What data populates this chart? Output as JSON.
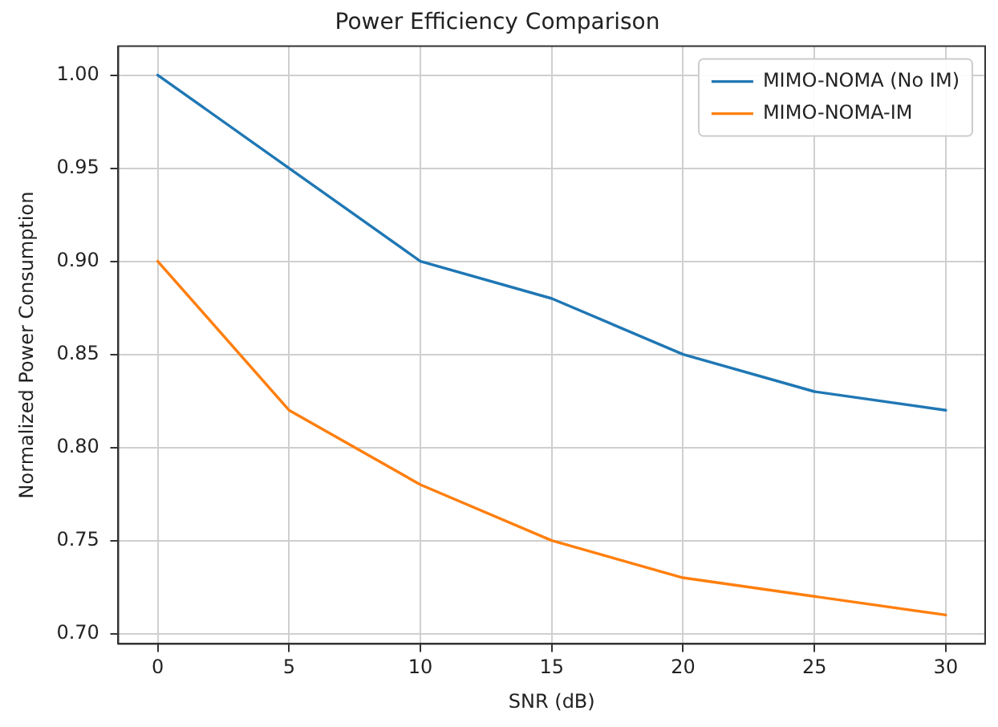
{
  "chart_data": {
    "type": "line",
    "title": "Power Efficiency Comparison",
    "xlabel": "SNR (dB)",
    "ylabel": "Normalized Power Consumption",
    "x": [
      0,
      5,
      10,
      15,
      20,
      25,
      30
    ],
    "series": [
      {
        "name": "MIMO-NOMA (No IM)",
        "color": "#1f77b4",
        "values": [
          1.0,
          0.95,
          0.9,
          0.88,
          0.85,
          0.83,
          0.82
        ]
      },
      {
        "name": "MIMO-NOMA-IM",
        "color": "#ff7f0e",
        "values": [
          0.9,
          0.82,
          0.78,
          0.75,
          0.73,
          0.72,
          0.71
        ]
      }
    ],
    "xlim": [
      -1.5,
      31.5
    ],
    "xticks": [
      0,
      5,
      10,
      15,
      20,
      25,
      30
    ],
    "ylim": [
      0.6945,
      1.0155
    ],
    "yticks": [
      {
        "value": 0.7,
        "label": "0.70"
      },
      {
        "value": 0.75,
        "label": "0.75"
      },
      {
        "value": 0.8,
        "label": "0.80"
      },
      {
        "value": 0.85,
        "label": "0.85"
      },
      {
        "value": 0.9,
        "label": "0.90"
      },
      {
        "value": 0.95,
        "label": "0.95"
      },
      {
        "value": 1.0,
        "label": "1.00"
      }
    ],
    "grid": true,
    "legend": "top right",
    "marker": "none",
    "line_style": "solid"
  }
}
